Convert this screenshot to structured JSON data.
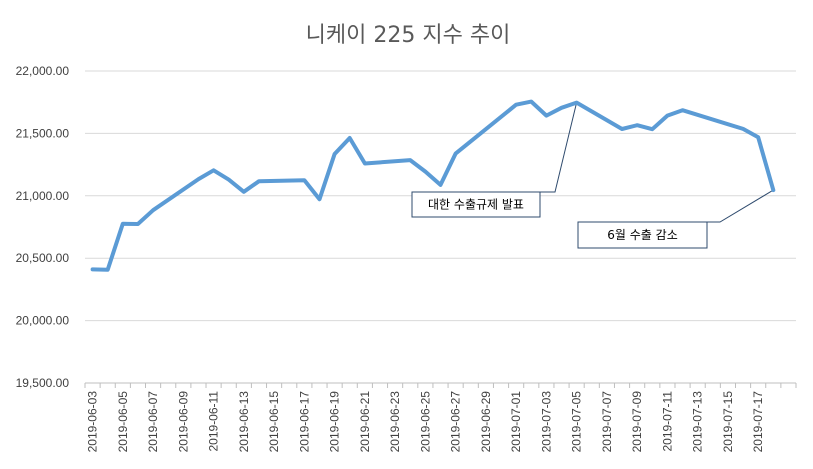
{
  "chart_data": {
    "type": "line",
    "title": "니케이 225 지수 추이",
    "xlabel": "",
    "ylabel": "",
    "ylim": [
      19500,
      22000
    ],
    "y_ticks": [
      "22,000.00",
      "21,500.00",
      "21,000.00",
      "20,500.00",
      "20,000.00",
      "19,500.00"
    ],
    "y_tick_values": [
      22000,
      21500,
      21000,
      20500,
      20000,
      19500
    ],
    "x_tick_labels": [
      "2019-06-03",
      "2019-06-05",
      "2019-06-07",
      "2019-06-09",
      "2019-06-11",
      "2019-06-13",
      "2019-06-15",
      "2019-06-17",
      "2019-06-19",
      "2019-06-21",
      "2019-06-23",
      "2019-06-25",
      "2019-06-27",
      "2019-06-29",
      "2019-07-01",
      "2019-07-03",
      "2019-07-05",
      "2019-07-07",
      "2019-07-09",
      "2019-07-11",
      "2019-07-13",
      "2019-07-15",
      "2019-07-17"
    ],
    "x_range": [
      "2019-06-03",
      "2019-07-19"
    ],
    "grid": true,
    "legend": "none",
    "line_color": "#5b9bd5",
    "series": [
      {
        "x": [
          "2019-06-03",
          "2019-06-04",
          "2019-06-05",
          "2019-06-06",
          "2019-06-07",
          "2019-06-10",
          "2019-06-11",
          "2019-06-12",
          "2019-06-13",
          "2019-06-14",
          "2019-06-17",
          "2019-06-18",
          "2019-06-19",
          "2019-06-20",
          "2019-06-21",
          "2019-06-24",
          "2019-06-25",
          "2019-06-26",
          "2019-06-27",
          "2019-07-01",
          "2019-07-02",
          "2019-07-03",
          "2019-07-04",
          "2019-07-05",
          "2019-07-08",
          "2019-07-09",
          "2019-07-10",
          "2019-07-11",
          "2019-07-12",
          "2019-07-16",
          "2019-07-17",
          "2019-07-18"
        ],
        "values": [
          20410,
          20408,
          20776,
          20774,
          20885,
          21134,
          21204,
          21130,
          21032,
          21117,
          21125,
          20973,
          21335,
          21463,
          21259,
          21286,
          21194,
          21087,
          21338,
          21730,
          21755,
          21643,
          21705,
          21747,
          21535,
          21566,
          21534,
          21643,
          21686,
          21536,
          21469,
          21046
        ]
      }
    ],
    "annotations": [
      {
        "text": "대한 수출규제 발표",
        "points_to": "2019-07-05"
      },
      {
        "text": "6월 수출 감소",
        "points_to": "2019-07-18"
      }
    ]
  }
}
